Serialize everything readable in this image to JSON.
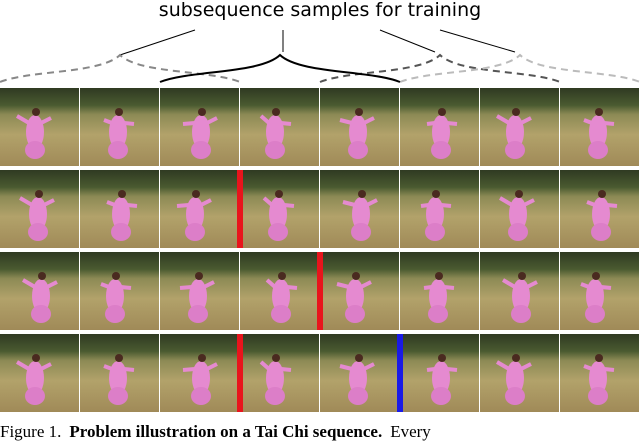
{
  "figure": {
    "label": "subsequence samples for training",
    "caption": {
      "prefix": "Figure 1.",
      "bold": "Problem illustration on a Tai Chi sequence.",
      "rest": "Every"
    }
  }
}
